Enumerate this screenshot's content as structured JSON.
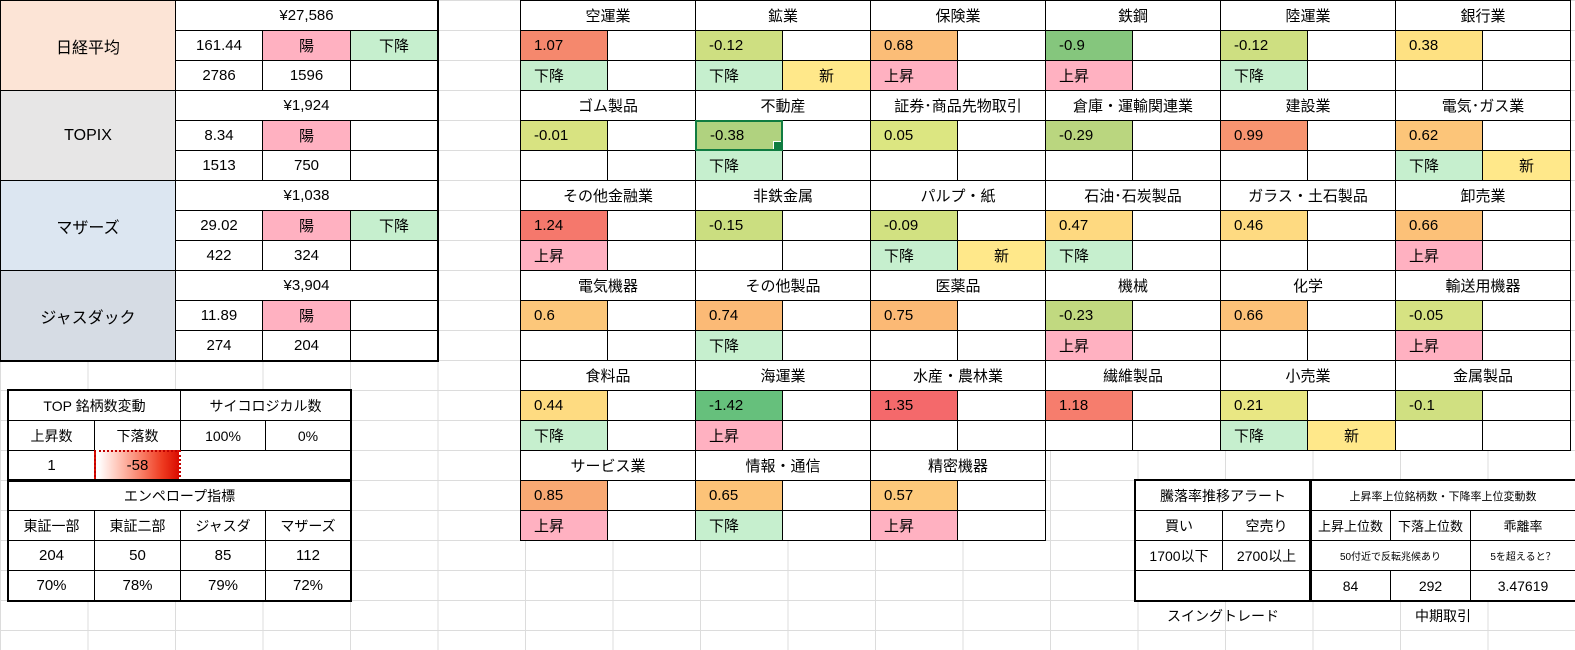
{
  "labels": {
    "new": "新",
    "up": "上昇",
    "down": "下降",
    "yang": "陽"
  },
  "colors": {
    "pink": "#ffb1c1",
    "down_green": "#c6efce",
    "new_yellow": "#ffe88a",
    "selection": "#107c41"
  },
  "indices": [
    {
      "name": "日経平均",
      "bg": "#fce4d6",
      "price": "¥27,586",
      "change": "161.44",
      "candle": "陽",
      "trend": "下降",
      "stat1": "2786",
      "stat2": "1596"
    },
    {
      "name": "TOPIX",
      "bg": "#e7e6e6",
      "price": "¥1,924",
      "change": "8.34",
      "candle": "陽",
      "trend": "",
      "stat1": "1513",
      "stat2": "750"
    },
    {
      "name": "マザーズ",
      "bg": "#dce6f1",
      "price": "¥1,038",
      "change": "29.02",
      "candle": "陽",
      "trend": "下降",
      "stat1": "422",
      "stat2": "324"
    },
    {
      "name": "ジャスダック",
      "bg": "#d6dce4",
      "price": "¥3,904",
      "change": "11.89",
      "candle": "陽",
      "trend": "",
      "stat1": "274",
      "stat2": "204"
    }
  ],
  "sector_rows": [
    [
      {
        "name": "空運業",
        "value": "1.07",
        "color": "#f5886d",
        "trend": "下降",
        "new": false
      },
      {
        "name": "鉱業",
        "value": "-0.12",
        "color": "#cedf81",
        "trend": "下降",
        "new": true
      },
      {
        "name": "保険業",
        "value": "0.68",
        "color": "#fbbd77",
        "trend": "上昇",
        "new": false
      },
      {
        "name": "鉄鋼",
        "value": "-0.9",
        "color": "#85c67d",
        "trend": "上昇",
        "new": false
      },
      {
        "name": "陸運業",
        "value": "-0.12",
        "color": "#cedf81",
        "trend": "下降",
        "new": false
      },
      {
        "name": "銀行業",
        "value": "0.38",
        "color": "#fee182",
        "trend": "",
        "new": false
      }
    ],
    [
      {
        "name": "ゴム製品",
        "value": "-0.01",
        "color": "#d8e381",
        "trend": "",
        "new": false
      },
      {
        "name": "不動産",
        "value": "-0.38",
        "color": "#b0d27f",
        "trend": "下降",
        "new": false,
        "selected": true
      },
      {
        "name": "証券･商品先物取引",
        "value": "0.05",
        "color": "#dce681",
        "trend": "",
        "new": false
      },
      {
        "name": "倉庫・運輸関連業",
        "value": "-0.29",
        "color": "#bad67f",
        "trend": "",
        "new": false
      },
      {
        "name": "建設業",
        "value": "0.99",
        "color": "#f79470",
        "trend": "",
        "new": false
      },
      {
        "name": "電気･ガス業",
        "value": "0.62",
        "color": "#fcc579",
        "trend": "下降",
        "new": true
      }
    ],
    [
      {
        "name": "その他金融業",
        "value": "1.24",
        "color": "#f5786c",
        "trend": "上昇",
        "new": false
      },
      {
        "name": "非鉄金属",
        "value": "-0.15",
        "color": "#cbde80",
        "trend": "",
        "new": false
      },
      {
        "name": "パルプ・紙",
        "value": "-0.09",
        "color": "#d2e181",
        "trend": "下降",
        "new": true
      },
      {
        "name": "石油･石炭製品",
        "value": "0.47",
        "color": "#fed980",
        "trend": "下降",
        "new": false
      },
      {
        "name": "ガラス・土石製品",
        "value": "0.46",
        "color": "#feda81",
        "trend": "",
        "new": false
      },
      {
        "name": "卸売業",
        "value": "0.66",
        "color": "#fcc178",
        "trend": "上昇",
        "new": false
      }
    ],
    [
      {
        "name": "電気機器",
        "value": "0.6",
        "color": "#fcc77a",
        "trend": "",
        "new": false
      },
      {
        "name": "その他製品",
        "value": "0.74",
        "color": "#fbba76",
        "trend": "下降",
        "new": false
      },
      {
        "name": "医薬品",
        "value": "0.75",
        "color": "#fbb975",
        "trend": "",
        "new": false
      },
      {
        "name": "機械",
        "value": "-0.23",
        "color": "#c1d980",
        "trend": "上昇",
        "new": false
      },
      {
        "name": "化学",
        "value": "0.66",
        "color": "#fcc178",
        "trend": "",
        "new": false
      },
      {
        "name": "輸送用機器",
        "value": "-0.05",
        "color": "#d6e282",
        "trend": "上昇",
        "new": false
      }
    ],
    [
      {
        "name": "食料品",
        "value": "0.44",
        "color": "#fedb81",
        "trend": "下降",
        "new": false
      },
      {
        "name": "海運業",
        "value": "-1.42",
        "color": "#66c07c",
        "trend": "上昇",
        "new": false
      },
      {
        "name": "水産・農林業",
        "value": "1.35",
        "color": "#f4696b",
        "trend": "",
        "new": false
      },
      {
        "name": "繊維製品",
        "value": "1.18",
        "color": "#f67d6d",
        "trend": "",
        "new": false
      },
      {
        "name": "小売業",
        "value": "0.21",
        "color": "#e9e783",
        "trend": "下降",
        "new": true
      },
      {
        "name": "金属製品",
        "value": "-0.1",
        "color": "#d0e081",
        "trend": "",
        "new": false
      }
    ],
    [
      {
        "name": "サービス業",
        "value": "0.85",
        "color": "#f9a973",
        "trend": "上昇",
        "new": false
      },
      {
        "name": "情報・通信",
        "value": "0.65",
        "color": "#fcc378",
        "trend": "下降",
        "new": false
      },
      {
        "name": "精密機器",
        "value": "0.57",
        "color": "#fdc97b",
        "trend": "上昇",
        "new": false
      }
    ]
  ],
  "top_table": {
    "title_left": "TOP 銘柄数変動",
    "title_right": "サイコロジカル数",
    "headers": [
      "上昇数",
      "下落数",
      "100%",
      "0%"
    ],
    "values": [
      "1",
      "-58"
    ]
  },
  "envelope_table": {
    "title": "エンペロープ指標",
    "headers": [
      "東証一部",
      "東証二部",
      "ジャスダ",
      "マザーズ"
    ],
    "counts": [
      "204",
      "50",
      "85",
      "112"
    ],
    "percents": [
      "70%",
      "78%",
      "79%",
      "72%"
    ]
  },
  "alert_table": {
    "title": "騰落率推移アラート",
    "headers": [
      "買い",
      "空売り"
    ],
    "values": [
      "1700以下",
      "2700以上"
    ],
    "footer": "スイングトレード"
  },
  "rank_table": {
    "title": "上昇率上位銘柄数・下降率上位変動数",
    "headers": [
      "上昇上位数",
      "下落上位数",
      "乖離率"
    ],
    "notes": [
      "50付近で反転兆候あり",
      "5を超えると？"
    ],
    "values": [
      "84",
      "292",
      "3.47619"
    ],
    "footer": "中期取引"
  }
}
